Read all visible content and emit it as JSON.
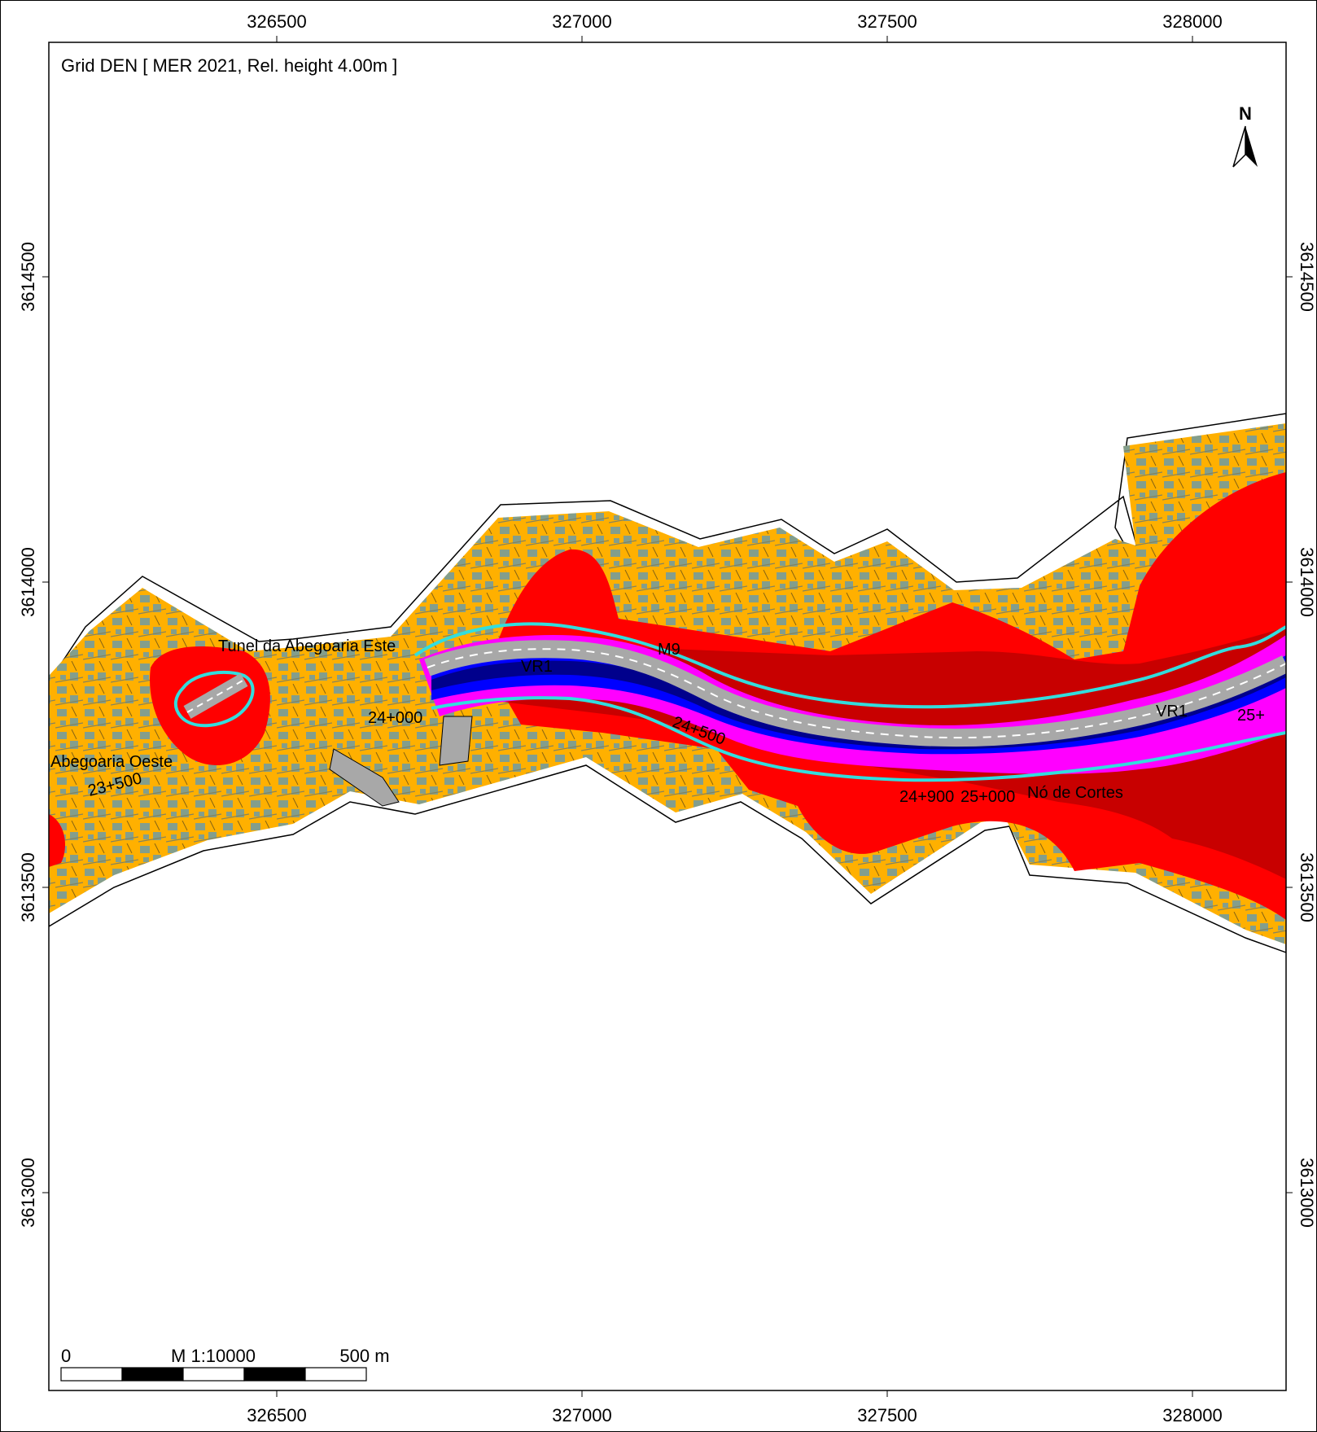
{
  "title": "Grid DEN  [ MER 2021, Rel. height  4.00m ]",
  "north_arrow": {
    "label": "N",
    "icon": "north-arrow-icon"
  },
  "x_ticks": [
    "326500",
    "327000",
    "327500",
    "328000"
  ],
  "y_ticks": [
    "3614500",
    "3614000",
    "3613500",
    "3613000"
  ],
  "scale_bar": {
    "left": "0",
    "center": "M 1:10000",
    "right": "500 m"
  },
  "map_labels": {
    "tunnel_east": "Tunel da Abegoaria Este",
    "tunnel_west": "Abegoaria Oeste",
    "ch_23_500": "23+500",
    "ch_24_000": "24+000",
    "ch_24_500": "24+500",
    "ch_24_900": "24+900",
    "ch_25_000": "25+000",
    "ch_25": "25+",
    "road_vr1_a": "VR1",
    "road_vr1_b": "VR1",
    "node": "Nó de Cortes",
    "marker": "M9"
  },
  "colors": {
    "zone_orange": "#FFB000",
    "zone_red": "#FF0000",
    "zone_darkred": "#C80000",
    "zone_magenta": "#FF00FF",
    "zone_blue": "#0000FF",
    "zone_navy": "#00008C",
    "buildings": "#1E90FF",
    "road_contour": "#33DDDD",
    "road_surface": "#A8A8A8"
  }
}
